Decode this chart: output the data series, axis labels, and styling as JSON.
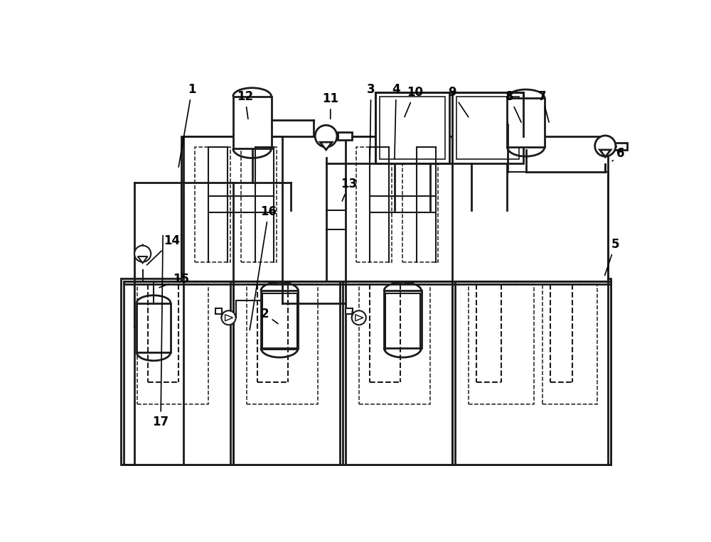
{
  "bg_color": "#ffffff",
  "line_color": "#1a1a1a",
  "lw": 1.5,
  "lw2": 2.0,
  "label_data": [
    [
      "1",
      185,
      45,
      160,
      190
    ],
    [
      "2",
      318,
      455,
      345,
      475
    ],
    [
      "3",
      512,
      45,
      510,
      175
    ],
    [
      "4",
      558,
      45,
      555,
      175
    ],
    [
      "5",
      958,
      328,
      938,
      388
    ],
    [
      "6",
      968,
      162,
      950,
      178
    ],
    [
      "7",
      825,
      58,
      838,
      108
    ],
    [
      "8",
      765,
      58,
      788,
      108
    ],
    [
      "9",
      660,
      50,
      692,
      98
    ],
    [
      "10",
      592,
      50,
      572,
      98
    ],
    [
      "11",
      438,
      62,
      438,
      102
    ],
    [
      "12",
      282,
      58,
      288,
      102
    ],
    [
      "13",
      472,
      218,
      458,
      252
    ],
    [
      "14",
      148,
      322,
      100,
      368
    ],
    [
      "15",
      165,
      392,
      122,
      408
    ],
    [
      "16",
      325,
      268,
      290,
      488
    ],
    [
      "17",
      128,
      652,
      132,
      308
    ]
  ]
}
